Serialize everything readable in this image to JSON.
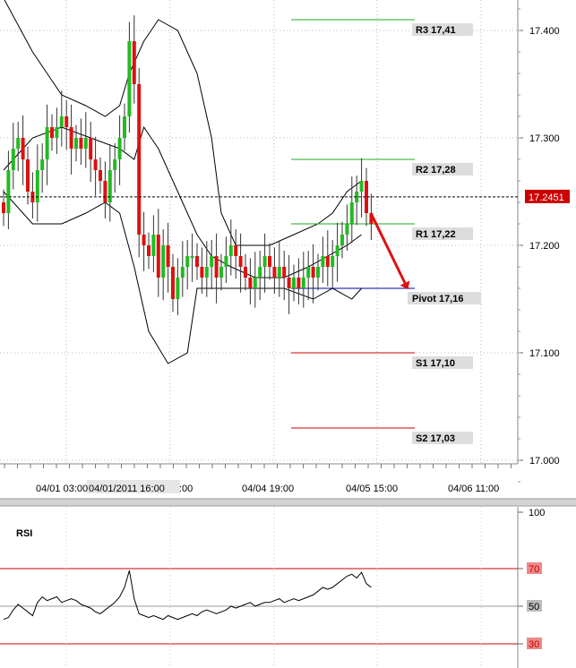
{
  "chart_data": [
    {
      "type": "candlestick",
      "instrument_price_label": "17.2451",
      "y_axis": {
        "ylim": [
          16.98,
          17.43
        ],
        "ticks": [
          "17.000",
          "17.100",
          "17.200",
          "17.300",
          "17.400"
        ],
        "tick_values": [
          17.0,
          17.1,
          17.2,
          17.3,
          17.4
        ]
      },
      "x_axis": {
        "tick_labels": [
          "04/01 03:00",
          "04/01/2011 16:00",
          ":00",
          "04/04 19:00",
          "04/05 15:00",
          "04/06 11:00"
        ],
        "highlighted_label": "04/01/2011 16:00"
      },
      "current_price": 17.2451,
      "levels": [
        {
          "name": "R3",
          "label": "R3 17,41",
          "value": 17.41,
          "color": "#22aa22"
        },
        {
          "name": "R2",
          "label": "R2 17,28",
          "value": 17.28,
          "color": "#22aa22"
        },
        {
          "name": "R1",
          "label": "R1 17,22",
          "value": 17.22,
          "color": "#22aa22"
        },
        {
          "name": "Pivot",
          "label": "Pivot 17,16",
          "value": 17.16,
          "color": "#0000aa"
        },
        {
          "name": "S1",
          "label": "S1 17,10",
          "value": 17.1,
          "color": "#cc0000"
        },
        {
          "name": "S2",
          "label": "S2 17,03",
          "value": 17.03,
          "color": "#cc0000"
        }
      ],
      "closes": [
        17.23,
        17.27,
        17.29,
        17.3,
        17.28,
        17.25,
        17.24,
        17.27,
        17.28,
        17.31,
        17.3,
        17.31,
        17.32,
        17.31,
        17.29,
        17.3,
        17.29,
        17.3,
        17.28,
        17.27,
        17.26,
        17.24,
        17.27,
        17.28,
        17.3,
        17.32,
        17.39,
        17.35,
        17.21,
        17.2,
        17.19,
        17.21,
        17.17,
        17.2,
        17.18,
        17.15,
        17.17,
        17.18,
        17.19,
        17.19,
        17.18,
        17.17,
        17.18,
        17.19,
        17.17,
        17.18,
        17.19,
        17.2,
        17.19,
        17.18,
        17.17,
        17.16,
        17.17,
        17.18,
        17.19,
        17.18,
        17.17,
        17.18,
        17.17,
        17.16,
        17.17,
        17.16,
        17.17,
        17.18,
        17.17,
        17.18,
        17.19,
        17.18,
        17.19,
        17.2,
        17.21,
        17.22,
        17.24,
        17.25,
        17.26,
        17.23,
        17.22
      ],
      "bollinger": {
        "upper": [
          [
            17.43,
            0
          ],
          [
            17.38,
            6
          ],
          [
            17.34,
            12
          ],
          [
            17.33,
            17
          ],
          [
            17.32,
            21
          ],
          [
            17.33,
            24
          ],
          [
            17.36,
            26
          ],
          [
            17.39,
            29
          ],
          [
            17.41,
            32
          ],
          [
            17.4,
            36
          ],
          [
            17.36,
            40
          ],
          [
            17.3,
            43
          ],
          [
            17.23,
            45
          ],
          [
            17.2,
            48
          ],
          [
            17.2,
            55
          ],
          [
            17.21,
            60
          ],
          [
            17.22,
            65
          ],
          [
            17.23,
            68
          ],
          [
            17.25,
            71
          ],
          [
            17.26,
            74
          ]
        ],
        "middle": [
          [
            17.27,
            0
          ],
          [
            17.3,
            6
          ],
          [
            17.31,
            12
          ],
          [
            17.3,
            18
          ],
          [
            17.29,
            24
          ],
          [
            17.28,
            27
          ],
          [
            17.31,
            29
          ],
          [
            17.29,
            32
          ],
          [
            17.25,
            36
          ],
          [
            17.21,
            40
          ],
          [
            17.19,
            43
          ],
          [
            17.18,
            47
          ],
          [
            17.17,
            52
          ],
          [
            17.17,
            58
          ],
          [
            17.18,
            63
          ],
          [
            17.19,
            67
          ],
          [
            17.2,
            71
          ],
          [
            17.21,
            74
          ]
        ],
        "lower": [
          [
            17.25,
            0
          ],
          [
            17.22,
            6
          ],
          [
            17.22,
            12
          ],
          [
            17.23,
            17
          ],
          [
            17.24,
            21
          ],
          [
            17.23,
            24
          ],
          [
            17.18,
            27
          ],
          [
            17.12,
            30
          ],
          [
            17.09,
            34
          ],
          [
            17.1,
            38
          ],
          [
            17.16,
            40
          ],
          [
            17.16,
            46
          ],
          [
            17.16,
            52
          ],
          [
            17.16,
            58
          ],
          [
            17.15,
            64
          ],
          [
            17.16,
            68
          ],
          [
            17.15,
            72
          ],
          [
            17.16,
            74
          ]
        ]
      },
      "forecast_arrow": {
        "from_value": 17.23,
        "to_value": 17.16,
        "color": "#dd1111"
      }
    },
    {
      "type": "line",
      "title": "RSI",
      "ylim": [
        20,
        100
      ],
      "ticks": [
        100,
        70,
        50,
        30
      ],
      "reference_levels": [
        70,
        30
      ],
      "values": [
        43,
        44,
        48,
        51,
        49,
        47,
        45,
        52,
        55,
        53,
        54,
        55,
        52,
        53,
        54,
        53,
        51,
        50,
        49,
        47,
        46,
        48,
        50,
        52,
        55,
        60,
        69,
        54,
        46,
        45,
        44,
        45,
        44,
        43,
        45,
        44,
        43,
        44,
        45,
        46,
        45,
        47,
        48,
        47,
        46,
        47,
        48,
        50,
        49,
        50,
        51,
        52,
        50,
        51,
        52,
        52,
        53,
        54,
        52,
        53,
        54,
        53,
        54,
        55,
        56,
        58,
        60,
        59,
        60,
        62,
        64,
        66,
        67,
        65,
        68,
        62,
        60
      ]
    }
  ]
}
